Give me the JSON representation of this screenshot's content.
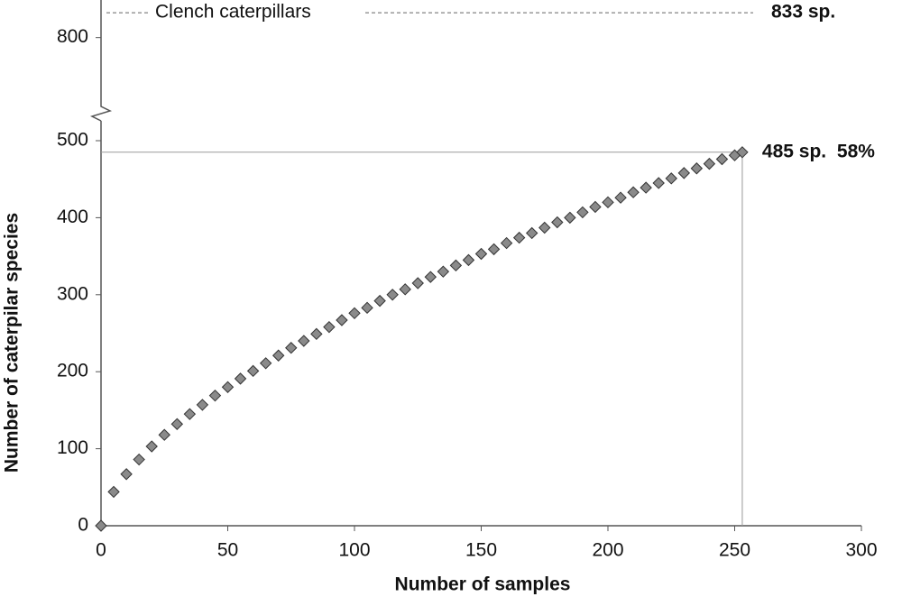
{
  "chart_data": {
    "type": "scatter",
    "x_label": "Number of samples",
    "y_label": "Number of caterpilar species",
    "x": [
      0,
      5,
      10,
      15,
      20,
      25,
      30,
      35,
      40,
      45,
      50,
      55,
      60,
      65,
      70,
      75,
      80,
      85,
      90,
      95,
      100,
      105,
      110,
      115,
      120,
      125,
      130,
      135,
      140,
      145,
      150,
      155,
      160,
      165,
      170,
      175,
      180,
      185,
      190,
      195,
      200,
      205,
      210,
      215,
      220,
      225,
      230,
      235,
      240,
      245,
      250,
      253
    ],
    "values": [
      0,
      44,
      67,
      86,
      103,
      118,
      132,
      145,
      157,
      169,
      180,
      191,
      201,
      211,
      221,
      231,
      240,
      249,
      258,
      267,
      276,
      283,
      292,
      300,
      307,
      315,
      323,
      330,
      338,
      345,
      353,
      359,
      367,
      374,
      380,
      387,
      394,
      400,
      407,
      414,
      420,
      426,
      433,
      439,
      445,
      451,
      458,
      464,
      470,
      476,
      481,
      485
    ],
    "value_labels": [
      null,
      null,
      null,
      null,
      null,
      null,
      null,
      null,
      null,
      null,
      null,
      null,
      null,
      null,
      null,
      null,
      null,
      null,
      null,
      null,
      null,
      null,
      null,
      null,
      null,
      null,
      null,
      null,
      null,
      null,
      null,
      null,
      null,
      null,
      null,
      null,
      null,
      null,
      null,
      null,
      null,
      null,
      null,
      null,
      null,
      null,
      null,
      null,
      null,
      null,
      null,
      "485 sp."
    ],
    "percent_label": "58%",
    "color": "#8a8a8a",
    "xlim": [
      0,
      300
    ],
    "xticks": [
      0,
      50,
      100,
      150,
      200,
      250,
      300
    ],
    "ylim": [
      0,
      500
    ],
    "yticks": [
      0,
      100,
      200,
      300,
      400,
      500
    ],
    "upper_ylim": [
      700,
      850
    ],
    "upper_yticks": [
      800
    ],
    "reference": {
      "label": "Clench caterpillars",
      "value": 833,
      "value_label": "833 sp."
    }
  }
}
